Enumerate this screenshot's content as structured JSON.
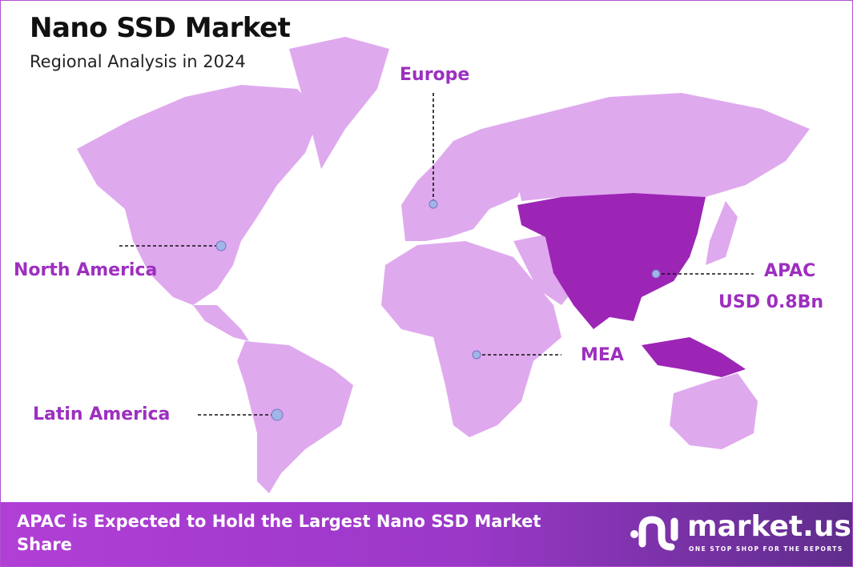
{
  "header": {
    "title": "Nano SSD Market",
    "subtitle": "Regional Analysis in 2024"
  },
  "regions": [
    {
      "name": "North America"
    },
    {
      "name": "Europe"
    },
    {
      "name": "APAC",
      "value": "USD 0.8Bn",
      "highlighted": true
    },
    {
      "name": "MEA"
    },
    {
      "name": "Latin America"
    }
  ],
  "colors": {
    "land": "#dfa9ee",
    "highlight": "#9c25b6",
    "label": "#9d2fbf",
    "marker": "#9fb6e6"
  },
  "banner": {
    "text": "APAC is Expected to Hold the Largest Nano SSD Market Share"
  },
  "logo": {
    "name": "market.us",
    "tagline": "ONE STOP SHOP FOR THE REPORTS"
  }
}
